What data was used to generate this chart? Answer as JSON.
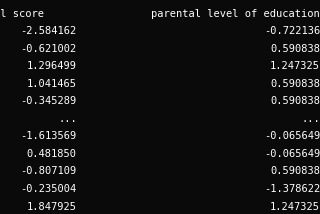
{
  "background_color": "#0a0a0a",
  "text_color": "#ffffff",
  "font_family": "monospace",
  "header": [
    "al score",
    "parental level of education"
  ],
  "col1_values": [
    "-2.584162",
    "-0.621002",
    "1.296499",
    "1.041465",
    "-0.345289",
    "...",
    "-1.613569",
    "0.481850",
    "-0.807109",
    "-0.235004",
    "1.847925"
  ],
  "col2_values": [
    "-0.722136",
    "0.590838",
    "1.247325",
    "0.590838",
    "0.590838",
    "...",
    "-0.065649",
    "-0.065649",
    "0.590838",
    "-1.378622",
    "1.247325"
  ],
  "header_fontsize": 7.5,
  "data_fontsize": 7.5,
  "figwidth": 3.2,
  "figheight": 2.14,
  "dpi": 100
}
